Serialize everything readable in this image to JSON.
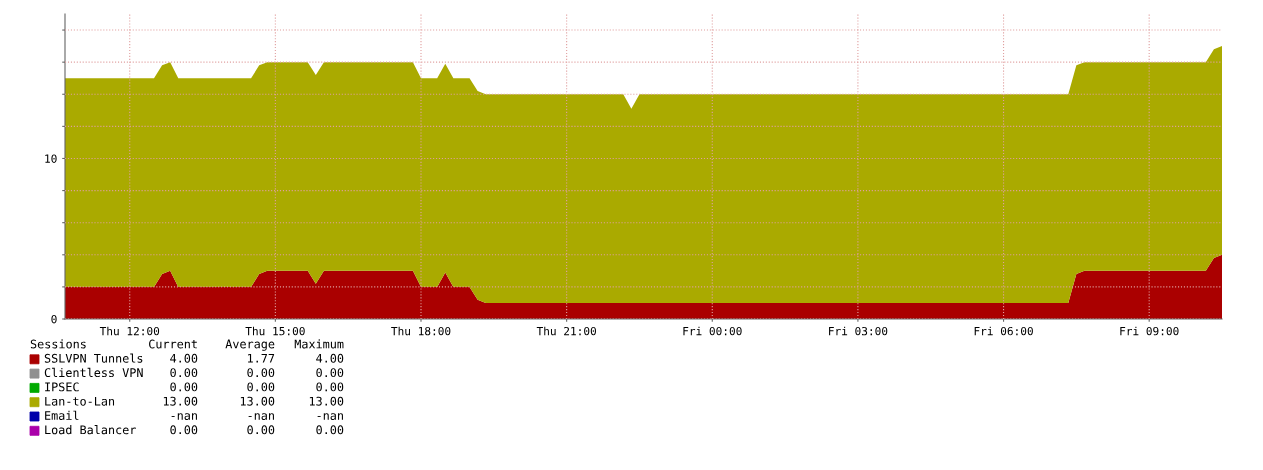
{
  "chart_data": {
    "type": "area",
    "stacked": true,
    "categories": [
      null,
      null,
      null,
      null,
      null,
      null,
      null,
      null,
      "Thu 12:00",
      null,
      null,
      null,
      null,
      null,
      null,
      null,
      null,
      null,
      null,
      null,
      null,
      null,
      null,
      null,
      null,
      null,
      "Thu 15:00",
      null,
      null,
      null,
      null,
      null,
      null,
      null,
      null,
      null,
      null,
      null,
      null,
      null,
      null,
      null,
      null,
      null,
      "Thu 18:00",
      null,
      null,
      null,
      null,
      null,
      null,
      null,
      null,
      null,
      null,
      null,
      null,
      null,
      null,
      null,
      null,
      null,
      "Thu 21:00",
      null,
      null,
      null,
      null,
      null,
      null,
      null,
      null,
      null,
      null,
      null,
      null,
      null,
      null,
      null,
      null,
      null,
      "Fri 00:00",
      null,
      null,
      null,
      null,
      null,
      null,
      null,
      null,
      null,
      null,
      null,
      null,
      null,
      null,
      null,
      null,
      null,
      "Fri 03:00",
      null,
      null,
      null,
      null,
      null,
      null,
      null,
      null,
      null,
      null,
      null,
      null,
      null,
      null,
      null,
      null,
      null,
      "Fri 06:00",
      null,
      null,
      null,
      null,
      null,
      null,
      null,
      null,
      null,
      null,
      null,
      null,
      null,
      null,
      null,
      null,
      null,
      "Fri 09:00",
      null,
      null,
      null,
      null,
      null,
      null,
      null,
      null,
      null
    ],
    "series": [
      {
        "name": "SSLVPN Tunnels",
        "color": "#aa0000",
        "values": [
          2,
          2,
          2,
          2,
          2,
          2,
          2,
          2,
          2,
          2,
          2,
          2,
          2.8,
          3,
          2,
          2,
          2,
          2,
          2,
          2,
          2,
          2,
          2,
          2,
          2.8,
          3,
          3,
          3,
          3,
          3,
          3,
          2.2,
          3,
          3,
          3,
          3,
          3,
          3,
          3,
          3,
          3,
          3,
          3,
          3,
          2,
          2,
          2,
          2.9,
          2,
          2,
          2,
          1.2,
          1,
          1,
          1,
          1,
          1,
          1,
          1,
          1,
          1,
          1,
          1,
          1,
          1,
          1,
          1,
          1,
          1,
          1,
          1,
          1,
          1,
          1,
          1,
          1,
          1,
          1,
          1,
          1,
          1,
          1,
          1,
          1,
          1,
          1,
          1,
          1,
          1,
          1,
          1,
          1,
          1,
          1,
          1,
          1,
          1,
          1,
          1,
          1,
          1,
          1,
          1,
          1,
          1,
          1,
          1,
          1,
          1,
          1,
          1,
          1,
          1,
          1,
          1,
          1,
          1,
          1,
          1,
          1,
          1,
          1,
          1,
          1,
          1,
          2.8,
          3,
          3,
          3,
          3,
          3,
          3,
          3,
          3,
          3,
          3,
          3,
          3,
          3,
          3,
          3,
          3,
          3.8,
          4
        ]
      },
      {
        "name": "Clientless VPN",
        "color": "#909090",
        "values": [
          null,
          null,
          null,
          null,
          null,
          null,
          null,
          null,
          null,
          null,
          null,
          null,
          null,
          null,
          null,
          null,
          null,
          null,
          null,
          null,
          null,
          null,
          null,
          null,
          null,
          null,
          null,
          null,
          null,
          null,
          null,
          null,
          null,
          null,
          null,
          null,
          null,
          null,
          null,
          null,
          null,
          null,
          null,
          null,
          null,
          null,
          null,
          null,
          null,
          null,
          null,
          null,
          null,
          null,
          null,
          null,
          null,
          null,
          null,
          null,
          null,
          null,
          null,
          null,
          null,
          null,
          null,
          null,
          null,
          null,
          null,
          null,
          null,
          null,
          null,
          null,
          null,
          null,
          null,
          null,
          null,
          null,
          null,
          null,
          null,
          null,
          null,
          null,
          null,
          null,
          null,
          null,
          null,
          null,
          null,
          null,
          null,
          null,
          null,
          null,
          null,
          null,
          null,
          null,
          null,
          null,
          null,
          null,
          null,
          null,
          null,
          null,
          null,
          null,
          null,
          null,
          null,
          null,
          null,
          null,
          null,
          null,
          null,
          null,
          null,
          null,
          null,
          null,
          null,
          null,
          null,
          null,
          null,
          null,
          null,
          null,
          null,
          null,
          null,
          null,
          null,
          null,
          null,
          null
        ]
      },
      {
        "name": "IPSEC",
        "color": "#00aa00",
        "values": [
          null,
          null,
          null,
          null,
          null,
          null,
          null,
          null,
          null,
          null,
          null,
          null,
          null,
          null,
          null,
          null,
          null,
          null,
          null,
          null,
          null,
          null,
          null,
          null,
          null,
          null,
          null,
          null,
          null,
          null,
          null,
          null,
          null,
          null,
          null,
          null,
          null,
          null,
          null,
          null,
          null,
          null,
          null,
          null,
          null,
          null,
          null,
          null,
          null,
          null,
          null,
          null,
          null,
          null,
          null,
          null,
          null,
          null,
          null,
          null,
          null,
          null,
          null,
          null,
          null,
          null,
          null,
          null,
          null,
          null,
          null,
          null,
          null,
          null,
          null,
          null,
          null,
          null,
          null,
          null,
          null,
          null,
          null,
          null,
          null,
          null,
          null,
          null,
          null,
          null,
          null,
          null,
          null,
          null,
          null,
          null,
          null,
          null,
          null,
          null,
          null,
          null,
          null,
          null,
          null,
          null,
          null,
          null,
          null,
          null,
          null,
          null,
          null,
          null,
          null,
          null,
          null,
          null,
          null,
          null,
          null,
          null,
          null,
          null,
          null,
          null,
          null,
          null,
          null,
          null,
          null,
          null,
          null,
          null,
          null,
          null,
          null,
          null,
          null,
          null,
          null,
          null,
          null,
          null
        ]
      },
      {
        "name": "Lan-to-Lan",
        "color": "#aaaa00",
        "values": [
          13,
          13,
          13,
          13,
          13,
          13,
          13,
          13,
          13,
          13,
          13,
          13,
          13,
          13,
          13,
          13,
          13,
          13,
          13,
          13,
          13,
          13,
          13,
          13,
          13,
          13,
          13,
          13,
          13,
          13,
          13,
          13,
          13,
          13,
          13,
          13,
          13,
          13,
          13,
          13,
          13,
          13,
          13,
          13,
          13,
          13,
          13,
          13,
          13,
          13,
          13,
          13,
          13,
          13,
          13,
          13,
          13,
          13,
          13,
          13,
          13,
          13,
          13,
          13,
          13,
          13,
          13,
          13,
          13,
          13,
          12.1,
          13,
          13,
          13,
          13,
          13,
          13,
          13,
          13,
          13,
          13,
          13,
          13,
          13,
          13,
          13,
          13,
          13,
          13,
          13,
          13,
          13,
          13,
          13,
          13,
          13,
          13,
          13,
          13,
          13,
          13,
          13,
          13,
          13,
          13,
          13,
          13,
          13,
          13,
          13,
          13,
          13,
          13,
          13,
          13,
          13,
          13,
          13,
          13,
          13,
          13,
          13,
          13,
          13,
          13,
          13,
          13,
          13,
          13,
          13,
          13,
          13,
          13,
          13,
          13,
          13,
          13,
          13,
          13,
          13,
          13,
          13,
          13,
          13
        ]
      },
      {
        "name": "Email",
        "color": "#0000aa",
        "values": [
          null,
          null,
          null,
          null,
          null,
          null,
          null,
          null,
          null,
          null,
          null,
          null,
          null,
          null,
          null,
          null,
          null,
          null,
          null,
          null,
          null,
          null,
          null,
          null,
          null,
          null,
          null,
          null,
          null,
          null,
          null,
          null,
          null,
          null,
          null,
          null,
          null,
          null,
          null,
          null,
          null,
          null,
          null,
          null,
          null,
          null,
          null,
          null,
          null,
          null,
          null,
          null,
          null,
          null,
          null,
          null,
          null,
          null,
          null,
          null,
          null,
          null,
          null,
          null,
          null,
          null,
          null,
          null,
          null,
          null,
          null,
          null,
          null,
          null,
          null,
          null,
          null,
          null,
          null,
          null,
          null,
          null,
          null,
          null,
          null,
          null,
          null,
          null,
          null,
          null,
          null,
          null,
          null,
          null,
          null,
          null,
          null,
          null,
          null,
          null,
          null,
          null,
          null,
          null,
          null,
          null,
          null,
          null,
          null,
          null,
          null,
          null,
          null,
          null,
          null,
          null,
          null,
          null,
          null,
          null,
          null,
          null,
          null,
          null,
          null,
          null,
          null,
          null,
          null,
          null,
          null,
          null,
          null,
          null,
          null,
          null,
          null,
          null,
          null,
          null,
          null,
          null,
          null,
          null
        ]
      },
      {
        "name": "Load Balancer",
        "color": "#aa00aa",
        "values": [
          null,
          null,
          null,
          null,
          null,
          null,
          null,
          null,
          null,
          null,
          null,
          null,
          null,
          null,
          null,
          null,
          null,
          null,
          null,
          null,
          null,
          null,
          null,
          null,
          null,
          null,
          null,
          null,
          null,
          null,
          null,
          null,
          null,
          null,
          null,
          null,
          null,
          null,
          null,
          null,
          null,
          null,
          null,
          null,
          null,
          null,
          null,
          null,
          null,
          null,
          null,
          null,
          null,
          null,
          null,
          null,
          null,
          null,
          null,
          null,
          null,
          null,
          null,
          null,
          null,
          null,
          null,
          null,
          null,
          null,
          null,
          null,
          null,
          null,
          null,
          null,
          null,
          null,
          null,
          null,
          null,
          null,
          null,
          null,
          null,
          null,
          null,
          null,
          null,
          null,
          null,
          null,
          null,
          null,
          null,
          null,
          null,
          null,
          null,
          null,
          null,
          null,
          null,
          null,
          null,
          null,
          null,
          null,
          null,
          null,
          null,
          null,
          null,
          null,
          null,
          null,
          null,
          null,
          null,
          null,
          null,
          null,
          null,
          null,
          null,
          null,
          null,
          null,
          null,
          null,
          null,
          null,
          null,
          null,
          null,
          null,
          null,
          null,
          null,
          null,
          null,
          null,
          null,
          null
        ]
      }
    ],
    "ylim": [
      0,
      19
    ],
    "yticks": [
      0,
      {
        "value": 2,
        "label": null
      },
      {
        "value": 4,
        "label": null
      },
      {
        "value": 6,
        "label": null
      },
      {
        "value": 8,
        "label": null
      },
      10,
      {
        "value": 12,
        "label": null
      },
      {
        "value": 14,
        "label": null
      },
      {
        "value": 16,
        "label": null
      },
      {
        "value": 18,
        "label": null
      }
    ],
    "grid": true,
    "legend": "bottom left",
    "legend_title": "Sessions",
    "annotations": [
      "Current",
      "Average",
      "Maximum",
      "4.00",
      "1.77",
      "4.00",
      "0.00",
      "0.00",
      "0.00",
      "0.00",
      "0.00",
      "0.00",
      "13.00",
      "13.00",
      "13.00",
      "-nan",
      "-nan",
      "-nan",
      "0.00",
      "0.00",
      "0.00"
    ]
  }
}
